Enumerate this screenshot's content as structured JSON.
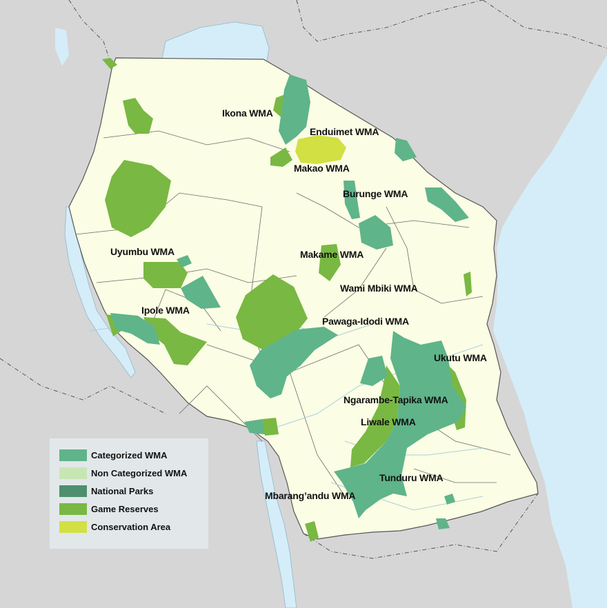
{
  "labels": {
    "ikona": "Ikona WMA",
    "enduimet": "Enduimet WMA",
    "makao": "Makao WMA",
    "burunge": "Burunge WMA",
    "uyumbu": "Uyumbu WMA",
    "makame": "Makame WMA",
    "wami_mbiki": "Wami Mbiki WMA",
    "ipole": "Ipole WMA",
    "pawaga_idodi": "Pawaga-Idodi WMA",
    "ukutu": "Ukutu WMA",
    "ngarambe_tapika": "Ngarambe-Tapika WMA",
    "liwale": "Liwale WMA",
    "tunduru": "Tunduru WMA",
    "mbarangandu": "Mbarang’andu WMA"
  },
  "legend": {
    "items": [
      {
        "label": "Categorized WMA",
        "color": "#5fb48a"
      },
      {
        "label": "Non Categorized WMA",
        "color": "#c7e6b3"
      },
      {
        "label": "National Parks",
        "color": "#4e8f6d"
      },
      {
        "label": "Game Reserves",
        "color": "#79b843"
      },
      {
        "label": "Conservation Area",
        "color": "#d2e044"
      }
    ]
  },
  "colors": {
    "land_focus": "#fbfde4",
    "land_other": "#d6d6d6",
    "water": "#d5edf8",
    "border": "#555555",
    "categorized_wma": "#5fb48a",
    "game_reserve": "#79b843",
    "conservation_area": "#d2e044"
  }
}
